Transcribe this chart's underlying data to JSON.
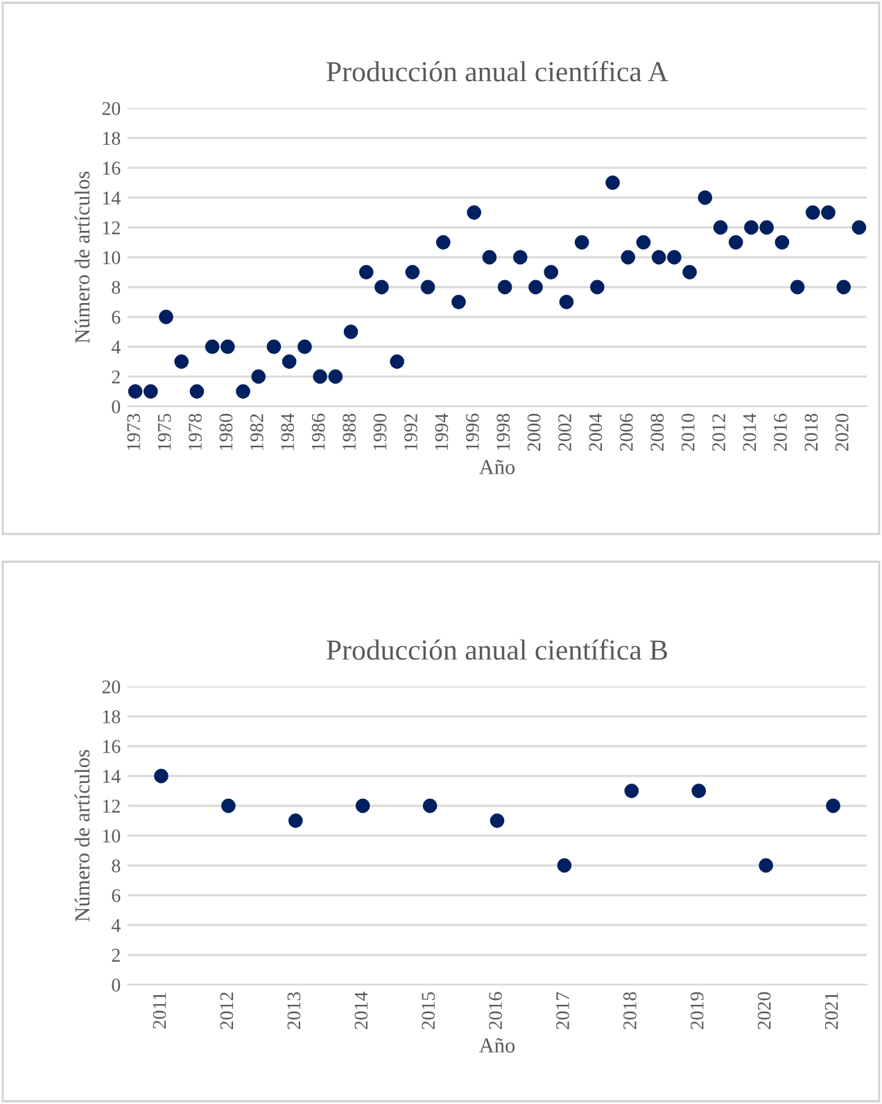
{
  "chart_data": [
    {
      "type": "scatter",
      "title": "Producción anual científica A",
      "xlabel": "Año",
      "ylabel": "Número de artículos",
      "categories": [
        "1973",
        null,
        "1975",
        null,
        "1978",
        null,
        "1980",
        null,
        "1982",
        null,
        "1984",
        null,
        "1986",
        null,
        "1988",
        null,
        "1990",
        null,
        "1992",
        null,
        "1994",
        null,
        "1996",
        null,
        "1998",
        null,
        "2000",
        null,
        "2002",
        null,
        "2004",
        null,
        "2006",
        null,
        "2008",
        null,
        "2010",
        null,
        "2012",
        null,
        "2014",
        null,
        "2016",
        null,
        "2018",
        null,
        "2020",
        null
      ],
      "series": [
        {
          "color": "#002060",
          "values": [
            1,
            1,
            6,
            3,
            1,
            4,
            4,
            1,
            2,
            4,
            3,
            4,
            2,
            2,
            5,
            9,
            8,
            3,
            9,
            8,
            11,
            7,
            13,
            10,
            8,
            10,
            8,
            9,
            7,
            11,
            8,
            15,
            10,
            11,
            10,
            10,
            9,
            14,
            12,
            11,
            12,
            12,
            11,
            8,
            13,
            13,
            8,
            12
          ]
        }
      ],
      "ylim": [
        0,
        20
      ],
      "yticks": [
        0,
        2,
        4,
        6,
        8,
        10,
        12,
        14,
        16,
        18,
        20
      ],
      "grid": "y",
      "marker": "circle"
    },
    {
      "type": "scatter",
      "title": "Producción anual científica B",
      "xlabel": "Año",
      "ylabel": "Número de artículos",
      "categories": [
        "2011",
        "2012",
        "2013",
        "2014",
        "2015",
        "2016",
        "2017",
        "2018",
        "2019",
        "2020",
        "2021"
      ],
      "series": [
        {
          "color": "#002060",
          "values": [
            14,
            12,
            11,
            12,
            12,
            11,
            8,
            13,
            13,
            8,
            12
          ]
        }
      ],
      "ylim": [
        0,
        20
      ],
      "yticks": [
        0,
        2,
        4,
        6,
        8,
        10,
        12,
        14,
        16,
        18,
        20
      ],
      "grid": "y",
      "marker": "circle"
    }
  ]
}
